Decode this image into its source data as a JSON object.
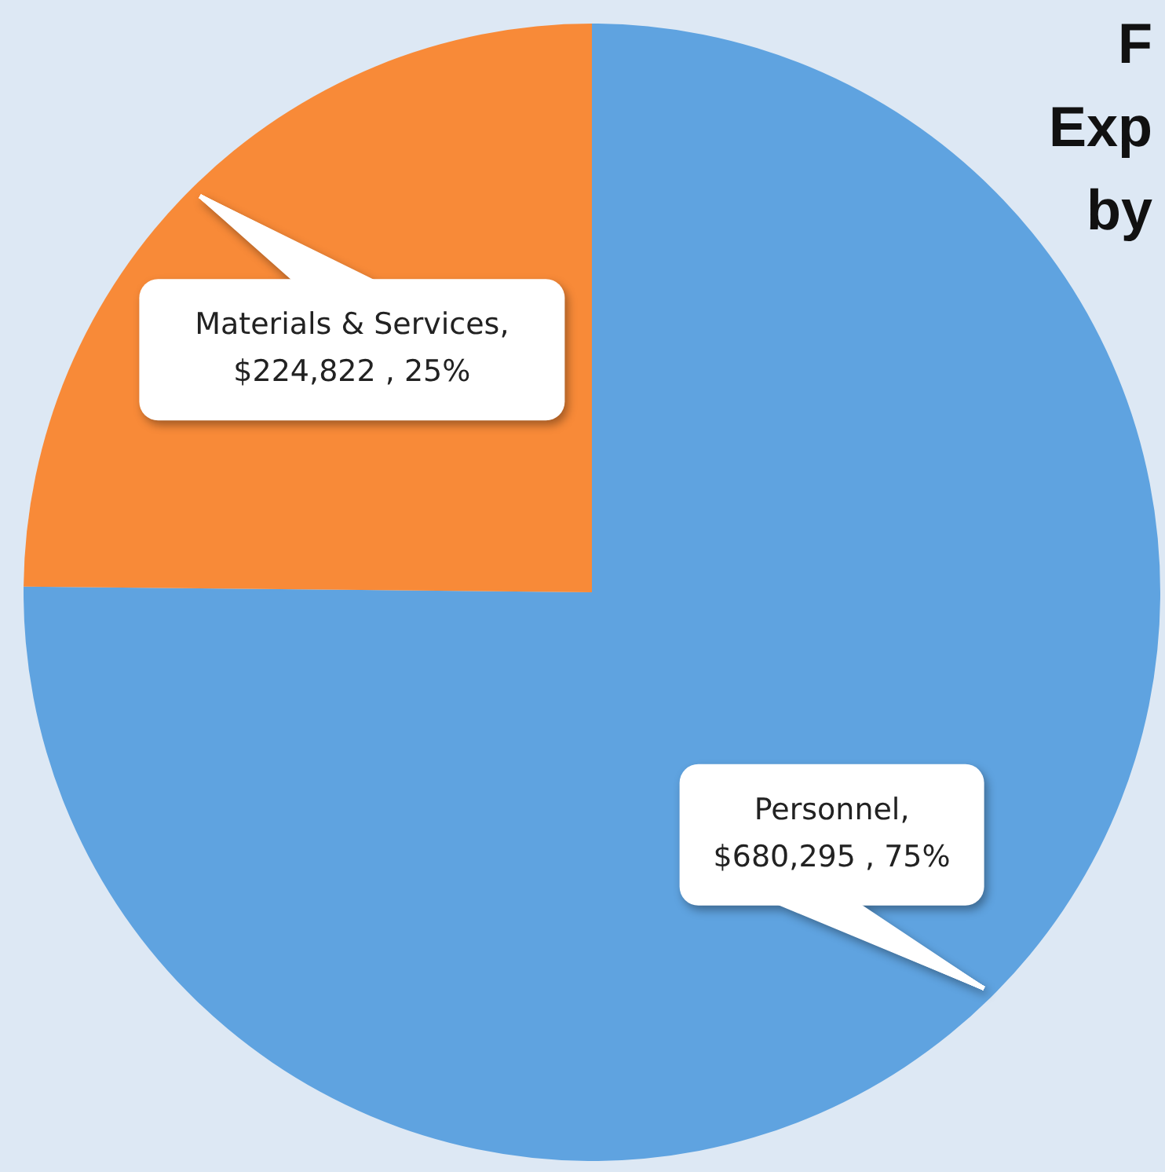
{
  "chart_data": {
    "type": "pie",
    "title": "F\nExp\nby",
    "categories": [
      "Personnel",
      "Materials & Services"
    ],
    "values": [
      680295,
      224822
    ],
    "colors": [
      "#5fa3e0",
      "#f88a38"
    ],
    "value_labels": [
      ",\n$680,295 , 75%",
      ",\n$224,822 , 25%"
    ]
  }
}
